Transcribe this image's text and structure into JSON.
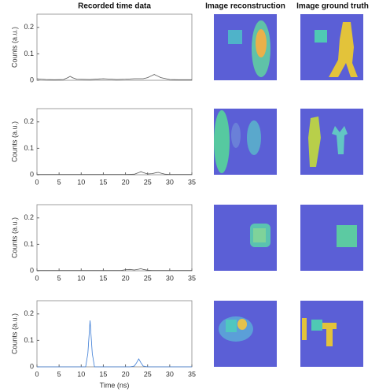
{
  "chart_data": [
    {
      "type": "line",
      "title": "Recorded time data",
      "y_label": "Counts (a.u.)",
      "xlim": [
        0,
        35
      ],
      "ylim": [
        0,
        0.25
      ],
      "yticks": [
        0,
        0.1,
        0.2
      ],
      "x": [
        0,
        1,
        2,
        4,
        6,
        7,
        7.5,
        8,
        9,
        12,
        15,
        18,
        20,
        22,
        24,
        25,
        26,
        26.5,
        27,
        28,
        30,
        32,
        35
      ],
      "series": [
        {
          "color": "#555555",
          "values": [
            0.006,
            0.004,
            0.003,
            0.002,
            0.003,
            0.01,
            0.015,
            0.01,
            0.004,
            0.003,
            0.006,
            0.003,
            0.004,
            0.006,
            0.006,
            0.01,
            0.018,
            0.022,
            0.018,
            0.01,
            0.003,
            0.002,
            0.002
          ]
        }
      ]
    },
    {
      "type": "line",
      "y_label": "Counts (a.u.)",
      "xlim": [
        0,
        35
      ],
      "ylim": [
        0,
        0.25
      ],
      "xticks": [
        0,
        5,
        10,
        15,
        20,
        25,
        30,
        35
      ],
      "yticks": [
        0,
        0.1,
        0.2
      ],
      "x": [
        0,
        10,
        20,
        22,
        23,
        23.5,
        24,
        25,
        26,
        27,
        27.5,
        28,
        29,
        30,
        35
      ],
      "series": [
        {
          "color": "#555555",
          "values": [
            0.001,
            0.001,
            0.001,
            0.002,
            0.008,
            0.012,
            0.008,
            0.003,
            0.004,
            0.008,
            0.009,
            0.006,
            0.002,
            0.001,
            0.001
          ]
        }
      ]
    },
    {
      "type": "line",
      "y_label": "Counts (a.u.)",
      "xlim": [
        0,
        35
      ],
      "ylim": [
        0,
        0.25
      ],
      "xticks": [
        0,
        5,
        10,
        15,
        20,
        25,
        30,
        35
      ],
      "yticks": [
        0,
        0.1,
        0.2
      ],
      "x": [
        0,
        10,
        19,
        20,
        21,
        22,
        23,
        23.5,
        24,
        25,
        26,
        35
      ],
      "series": [
        {
          "color": "#555555",
          "values": [
            0.001,
            0.001,
            0.001,
            0.004,
            0.005,
            0.003,
            0.006,
            0.008,
            0.005,
            0.002,
            0.001,
            0.001
          ]
        }
      ]
    },
    {
      "type": "line",
      "x_label": "Time (ns)",
      "y_label": "Counts (a.u.)",
      "xlim": [
        0,
        35
      ],
      "ylim": [
        0,
        0.25
      ],
      "xticks": [
        0,
        5,
        10,
        15,
        20,
        25,
        30,
        35
      ],
      "yticks": [
        0,
        0.1,
        0.2
      ],
      "x": [
        0,
        10,
        11,
        11.5,
        12,
        12.5,
        13,
        14,
        20,
        21,
        22,
        22.5,
        23,
        23.5,
        24,
        25,
        35
      ],
      "series": [
        {
          "color": "#3a7bd5",
          "values": [
            0,
            0,
            0,
            0.05,
            0.175,
            0.05,
            0,
            0,
            0,
            0,
            0.003,
            0.015,
            0.03,
            0.015,
            0.003,
            0,
            0
          ]
        }
      ]
    }
  ],
  "image_titles": {
    "reconstruction": "Image reconstruction",
    "ground_truth": "Image ground truth"
  }
}
